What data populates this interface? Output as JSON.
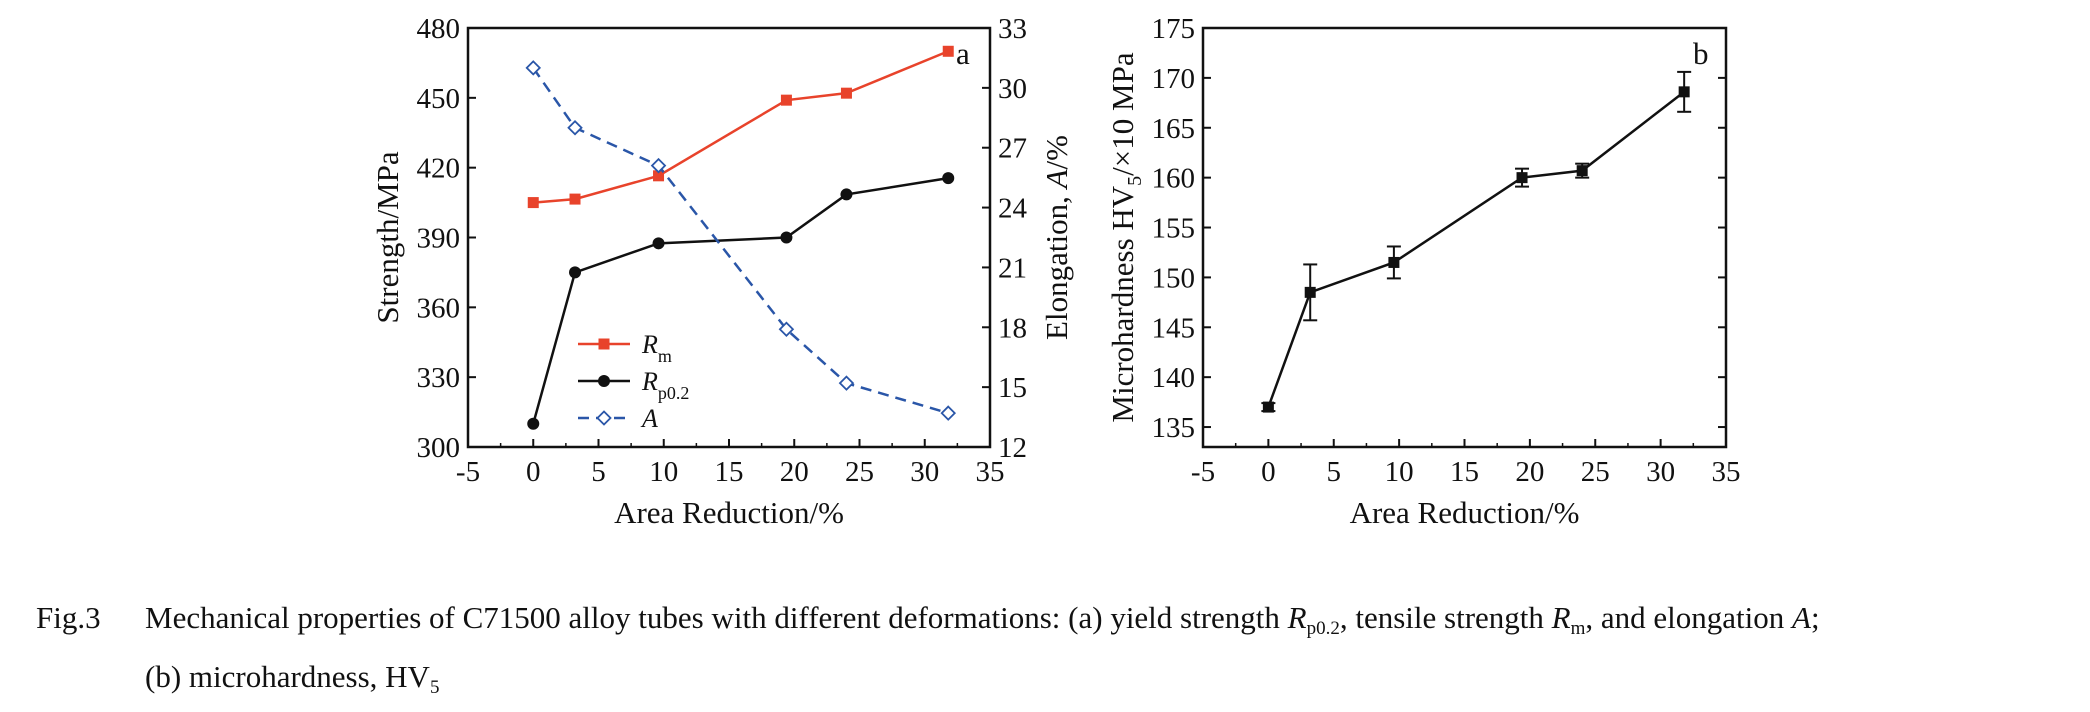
{
  "chart_data": [
    {
      "id": "a",
      "type": "line",
      "panel_label": "a",
      "xlabel": "Area Reduction/%",
      "ylabel_left": "Strength/MPa",
      "ylabel_right": {
        "prefix": "Elongation, ",
        "var": "A",
        "suffix": "/%"
      },
      "xlim": [
        -5,
        35
      ],
      "ylim_left": [
        300,
        480
      ],
      "ylim_right": [
        12,
        33
      ],
      "xticks": [
        -5,
        0,
        5,
        10,
        15,
        20,
        25,
        30,
        35
      ],
      "yticks_left": [
        300,
        330,
        360,
        390,
        420,
        450,
        480
      ],
      "yticks_right": [
        12,
        15,
        18,
        21,
        24,
        27,
        30,
        33
      ],
      "x": [
        0,
        3.2,
        9.6,
        19.4,
        24.0,
        31.8
      ],
      "legend_position": "lower-left",
      "series": [
        {
          "name": "R",
          "sub": "m",
          "axis": "left",
          "color": "#e8432b",
          "marker": "square",
          "dash": false,
          "values": [
            405,
            406.5,
            416.5,
            449,
            452,
            470
          ]
        },
        {
          "name": "R",
          "sub": "p0.2",
          "axis": "left",
          "color": "#111111",
          "marker": "circle",
          "dash": false,
          "values": [
            310,
            375,
            387.5,
            390,
            408.5,
            415.5
          ]
        },
        {
          "name": "A",
          "sub": "",
          "axis": "right",
          "color": "#2a56a8",
          "marker": "diamond",
          "dash": true,
          "values": [
            31.0,
            28.0,
            26.1,
            17.9,
            15.2,
            13.7
          ]
        }
      ]
    },
    {
      "id": "b",
      "type": "line",
      "panel_label": "b",
      "xlabel": "Area Reduction/%",
      "ylabel": {
        "prefix": "Microhardness HV",
        "sub": "5",
        "suffix": "/×10 MPa"
      },
      "xlim": [
        -5,
        35
      ],
      "ylim": [
        133,
        175
      ],
      "xticks": [
        -5,
        0,
        5,
        10,
        15,
        20,
        25,
        30,
        35
      ],
      "yticks": [
        135,
        140,
        145,
        150,
        155,
        160,
        165,
        170,
        175
      ],
      "x": [
        0,
        3.2,
        9.6,
        19.4,
        24.0,
        31.8
      ],
      "series": [
        {
          "name": "",
          "color": "#111111",
          "marker": "square",
          "values": [
            137.0,
            148.5,
            151.5,
            160.0,
            160.7,
            168.6
          ],
          "errors": [
            0.4,
            2.8,
            1.6,
            0.9,
            0.7,
            2.0
          ]
        }
      ]
    }
  ],
  "caption": {
    "label": "Fig.3",
    "line1_a": "Mechanical properties of C71500 alloy tubes with different deformations: (a) yield strength ",
    "r1": "R",
    "r1_sub": "p0.2",
    "line1_b": ", tensile strength ",
    "r2": "R",
    "r2_sub": "m",
    "line1_c": ", and elongation ",
    "a_var": "A",
    "line1_d": ";",
    "line2_a": "(b) microhardness, HV",
    "line2_sub": "5"
  }
}
